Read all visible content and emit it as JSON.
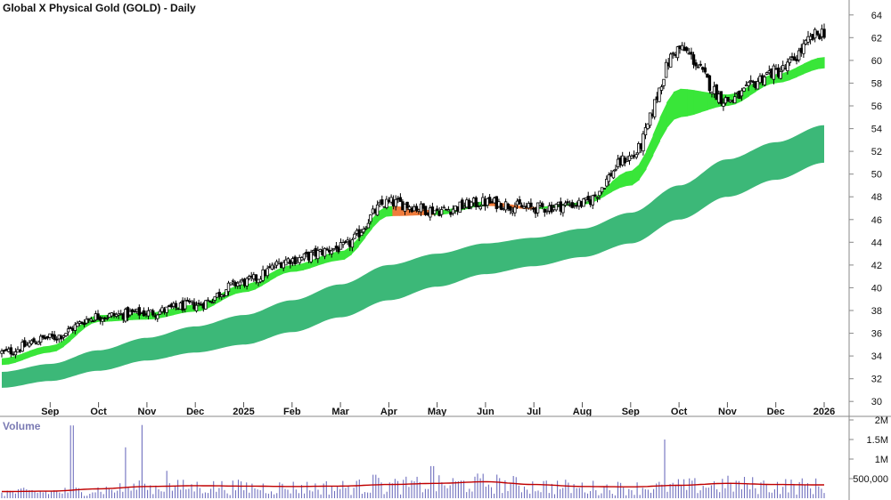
{
  "chart_data": [
    {
      "type": "candlestick",
      "title": "Global X Physical Gold (GOLD) - Daily",
      "x": [
        "Aug",
        "Sep",
        "Oct",
        "Nov",
        "Dec",
        "2025",
        "Feb",
        "Mar",
        "Apr",
        "May",
        "Jun",
        "Jul",
        "Aug",
        "Sep",
        "Oct",
        "Nov",
        "Dec",
        "2026"
      ],
      "x_tick_labels": [
        "Sep",
        "Oct",
        "Nov",
        "Dec",
        "2025",
        "Feb",
        "Mar",
        "Apr",
        "May",
        "Jun",
        "Jul",
        "Aug",
        "Sep",
        "Oct",
        "Nov",
        "Dec",
        "2026"
      ],
      "ylim": [
        29,
        65
      ],
      "y_ticks": [
        30,
        32,
        34,
        36,
        38,
        40,
        42,
        44,
        46,
        48,
        50,
        52,
        54,
        56,
        58,
        60,
        62,
        64
      ],
      "price_anchors": {
        "x": [
          0,
          1,
          2,
          3,
          4,
          5,
          6,
          7,
          8,
          9,
          10,
          11,
          12,
          13,
          14,
          15,
          16,
          17
        ],
        "close": [
          34.3,
          35.6,
          37.5,
          37.8,
          38.5,
          40.5,
          42.5,
          43.5,
          47.5,
          46.8,
          47.5,
          47.0,
          47.4,
          51.5,
          61.0,
          56.5,
          59.0,
          62.5
        ]
      },
      "short_term_band": {
        "color_up": "#39e639",
        "color_down": "#f07c3c",
        "x": [
          0,
          1,
          2,
          3,
          4,
          5,
          6,
          7,
          8,
          9,
          10,
          11,
          12,
          13,
          14,
          15,
          16,
          17
        ],
        "upper": [
          33.8,
          34.9,
          37.6,
          37.8,
          38.5,
          40.3,
          42.0,
          43.2,
          47.2,
          46.8,
          47.6,
          47.1,
          47.5,
          50.3,
          57.5,
          57.0,
          58.8,
          60.3
        ],
        "lower": [
          33.2,
          34.3,
          37.0,
          37.2,
          37.9,
          39.6,
          41.4,
          42.4,
          46.3,
          46.4,
          47.2,
          46.9,
          47.3,
          49.0,
          55.0,
          56.0,
          58.0,
          59.3
        ]
      },
      "long_term_band": {
        "color": "#3cb878",
        "x": [
          0,
          1,
          2,
          3,
          4,
          5,
          6,
          7,
          8,
          9,
          10,
          11,
          12,
          13,
          14,
          15,
          16,
          17
        ],
        "upper": [
          32.6,
          33.3,
          34.5,
          35.6,
          36.6,
          37.6,
          38.9,
          40.3,
          42.0,
          43.0,
          43.9,
          44.4,
          45.2,
          46.6,
          49.0,
          51.3,
          52.8,
          54.3
        ],
        "lower": [
          31.2,
          31.8,
          32.7,
          33.6,
          34.3,
          35.0,
          36.1,
          37.4,
          38.9,
          40.1,
          41.2,
          41.9,
          42.7,
          43.9,
          46.0,
          48.0,
          49.5,
          51.0
        ]
      }
    },
    {
      "type": "bar",
      "title": "Volume",
      "ylim": [
        0,
        2000000
      ],
      "y_ticks": [
        500000,
        1000000,
        1500000,
        2000000
      ],
      "y_tick_labels": [
        "500,000",
        "1M",
        "1.5M",
        "2M"
      ],
      "average_line_color": "#c00000",
      "average_values": [
        170000,
        180000,
        240000,
        300000,
        320000,
        310000,
        300000,
        310000,
        350000,
        380000,
        420000,
        350000,
        300000,
        290000,
        330000,
        380000,
        350000,
        340000
      ],
      "spikes": {
        "x": [
          1.45,
          2.55,
          2.88,
          3.4,
          7.7,
          8.9,
          13.7
        ],
        "values": [
          1860000,
          1300000,
          1870000,
          700000,
          600000,
          820000,
          1500000
        ]
      }
    }
  ]
}
